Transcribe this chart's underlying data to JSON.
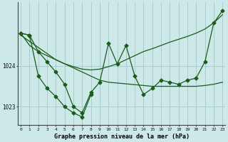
{
  "background_color": "#cce8e8",
  "grid_color": "#aacccc",
  "line_color": "#1a5c1a",
  "x_values": [
    0,
    1,
    2,
    3,
    4,
    5,
    6,
    7,
    8,
    9,
    10,
    11,
    12,
    13,
    14,
    15,
    16,
    17,
    18,
    19,
    20,
    21,
    22,
    23
  ],
  "x_labels": [
    "0",
    "1",
    "2",
    "3",
    "4",
    "5",
    "6",
    "7",
    "8",
    "9",
    "10",
    "11",
    "12",
    "13",
    "14",
    "15",
    "16",
    "17",
    "18",
    "19",
    "20",
    "21",
    "22",
    "23"
  ],
  "series_main": [
    1024.8,
    1024.75,
    1024.35,
    1024.1,
    1023.85,
    1023.55,
    1023.0,
    1022.85,
    1023.35,
    1023.6,
    1024.55,
    1024.05,
    1024.5,
    1023.75,
    1023.3,
    1023.45,
    1023.65,
    1023.6,
    1023.55,
    1023.65,
    1023.7,
    1024.1,
    1025.05,
    1025.35
  ],
  "series_short": [
    1024.8,
    1024.75,
    1023.75,
    1023.45,
    1023.25,
    1023.0,
    1022.85,
    1022.75,
    1023.3
  ],
  "trend_flat": [
    1024.8,
    1024.5,
    1024.35,
    1024.25,
    1024.15,
    1024.05,
    1023.95,
    1023.85,
    1023.75,
    1023.65,
    1023.6,
    1023.58,
    1023.56,
    1023.54,
    1023.52,
    1023.5,
    1023.5,
    1023.5,
    1023.5,
    1023.5,
    1023.5,
    1023.52,
    1023.55,
    1023.6
  ],
  "trend_rising": [
    1024.75,
    1024.6,
    1024.45,
    1024.3,
    1024.15,
    1024.05,
    1023.98,
    1023.92,
    1023.9,
    1023.92,
    1023.98,
    1024.05,
    1024.15,
    1024.25,
    1024.35,
    1024.42,
    1024.5,
    1024.58,
    1024.65,
    1024.72,
    1024.8,
    1024.9,
    1025.05,
    1025.25
  ],
  "ylim": [
    1022.55,
    1025.55
  ],
  "yticks": [
    1023,
    1024
  ],
  "xlabel": "Graphe pression niveau de la mer (hPa)"
}
